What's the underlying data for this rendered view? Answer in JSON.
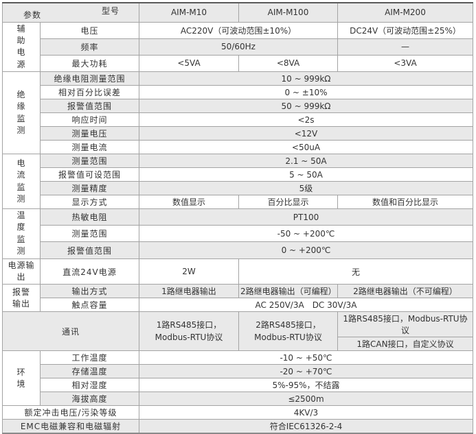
{
  "header": {
    "corner_top": "型号",
    "corner_bottom": "参数",
    "models": [
      "AIM-M10",
      "AIM-M100",
      "AIM-M200"
    ]
  },
  "colors": {
    "stripe_gray": "#e9e9e9",
    "stripe_white": "#ffffff",
    "border_inner": "#a3a3a3",
    "border_outer_top": "#5a5a5a",
    "text": "#333333"
  },
  "sections": {
    "aux": {
      "group": "辅\n助\n电\n源",
      "voltage": {
        "label": "电压",
        "m10_m100": "AC220V（可波动范围±10%）",
        "m200": "DC24V（可波动范围±25%）"
      },
      "freq": {
        "label": "频率",
        "m10_m100": "50/60Hz",
        "m200": "—"
      },
      "maxpower": {
        "label": "最大功耗",
        "m10": "<5VA",
        "m100": "<8VA",
        "m200": "<3VA"
      }
    },
    "insulation": {
      "group": "绝\n缘\n监\n测",
      "res_range": {
        "label": "绝缘电阻测量范围",
        "all": "10 ~ 999kΩ"
      },
      "rel_err": {
        "label": "相对百分比误差",
        "all": "0 ~ ±10%"
      },
      "alarm_range": {
        "label": "报警值范围",
        "all": "50 ~ 999kΩ"
      },
      "resp_time": {
        "label": "响应时间",
        "all": "<2s"
      },
      "meas_v": {
        "label": "测量电压",
        "all": "<12V"
      },
      "meas_i": {
        "label": "测量电流",
        "all": "<50uA"
      }
    },
    "current": {
      "group": "电\n流\n监\n测",
      "range": {
        "label": "测量范围",
        "all": "2.1 ~ 50A"
      },
      "alarm_set": {
        "label": "报警值可设范围",
        "all": "5 ~ 50A"
      },
      "accuracy": {
        "label": "测量精度",
        "all": "5级"
      },
      "display": {
        "label": "显示方式",
        "m10": "数值显示",
        "m100": "百分比显示",
        "m200": "数值和百分比显示"
      }
    },
    "temp": {
      "group": "温\n度\n监\n测",
      "thermistor": {
        "label": "热敏电阻",
        "all": "PT100"
      },
      "range": {
        "label": "测量范围",
        "all": "-50 ~ +200℃"
      },
      "alarm_range": {
        "label": "报警值范围",
        "all": "0 ~ +200℃"
      }
    },
    "power_out": {
      "group": "电源输出",
      "dc24": {
        "label": "直流24V电源",
        "m10": "2W",
        "m100_m200": "无"
      }
    },
    "alarm_out": {
      "group": "报警\n输出",
      "mode": {
        "label": "输出方式",
        "m10": "1路继电器输出",
        "m100": "2路继电器输出（可编程）",
        "m200": "2路继电器输出（不可编程）"
      },
      "contact": {
        "label": "触点容量",
        "all": "AC 250V/3A　DC 30V/3A"
      }
    },
    "comm": {
      "group": "通讯",
      "m10_line1": "1路RS485接口，",
      "m10_line2": "Modbus-RTU协议",
      "m100_line1": "2路RS485接口，",
      "m100_line2": "Modbus-RTU协议",
      "m200_row1": "1路RS485接口，Modbus-RTU协议",
      "m200_row2": "1路CAN接口，自定义协议"
    },
    "env": {
      "group": "环\n境",
      "work_temp": {
        "label": "工作温度",
        "all": "-10 ~ +50℃"
      },
      "storage_temp": {
        "label": "存储温度",
        "all": "-20 ~ +70℃"
      },
      "humidity": {
        "label": "相对湿度",
        "all": "5%-95%，不结露"
      },
      "altitude": {
        "label": "海拔高度",
        "all": "≤2500m"
      }
    },
    "surge": {
      "label": "额定冲击电压/污染等级",
      "all": "4KV/3"
    },
    "emc": {
      "label": "EMC电磁兼容和电磁辐射",
      "all": "符合IEC61326-2-4"
    }
  }
}
